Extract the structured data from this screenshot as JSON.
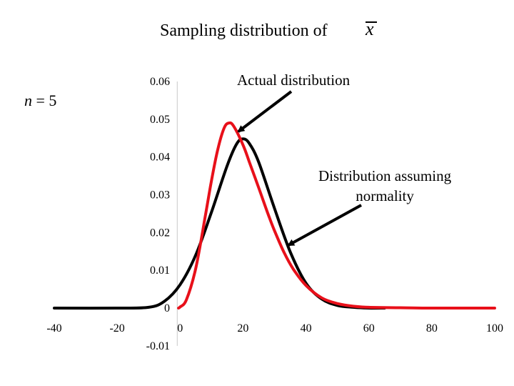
{
  "title": {
    "main": "Sampling distribution of",
    "symbol": "x"
  },
  "sample_size_label": {
    "var": "n",
    "eq": " = ",
    "val": "5"
  },
  "annotations": {
    "actual": "Actual distribution",
    "normal_line1": "Distribution assuming",
    "normal_line2": "normality"
  },
  "chart_data": {
    "type": "line",
    "title": "Sampling distribution of x̄",
    "xlabel": "",
    "ylabel": "",
    "xlim": [
      -40,
      100
    ],
    "ylim": [
      -0.01,
      0.06
    ],
    "x_ticks": [
      -40,
      -20,
      0,
      20,
      40,
      60,
      80,
      100
    ],
    "x_tick_labels": [
      "-40",
      "-20",
      "0",
      "20",
      "40",
      "60",
      "80",
      "100"
    ],
    "y_ticks": [
      -0.01,
      0,
      0.01,
      0.02,
      0.03,
      0.04,
      0.05,
      0.06
    ],
    "y_tick_labels": [
      "-0.01",
      "0",
      "0.01",
      "0.02",
      "0.03",
      "0.04",
      "0.05",
      "0.06"
    ],
    "series": [
      {
        "name": "Distribution assuming normality",
        "color": "#000000",
        "x": [
          -40,
          -20,
          -10,
          -5,
          0,
          5,
          10,
          15,
          18,
          20,
          22,
          25,
          30,
          35,
          40,
          45,
          50,
          55,
          60,
          65
        ],
        "y": [
          0,
          0,
          0.0002,
          0.0018,
          0.0062,
          0.0141,
          0.0255,
          0.0378,
          0.0435,
          0.0448,
          0.0436,
          0.0386,
          0.0264,
          0.0149,
          0.0066,
          0.0024,
          0.0007,
          0.0002,
          0,
          0
        ]
      },
      {
        "name": "Actual distribution",
        "color": "#e8101a",
        "x": [
          -0.5,
          0,
          2,
          5,
          8,
          10,
          12,
          14,
          15.5,
          17,
          20,
          22,
          25,
          28,
          30,
          33,
          36,
          40,
          45,
          50,
          55,
          60,
          70,
          80,
          100
        ],
        "y": [
          0,
          0.0003,
          0.0022,
          0.0106,
          0.0243,
          0.0339,
          0.0421,
          0.0477,
          0.049,
          0.0482,
          0.0432,
          0.0387,
          0.0318,
          0.0248,
          0.0205,
          0.0148,
          0.0103,
          0.006,
          0.0027,
          0.0012,
          0.0005,
          0.0002,
          0.0001,
          0,
          0
        ]
      }
    ]
  }
}
